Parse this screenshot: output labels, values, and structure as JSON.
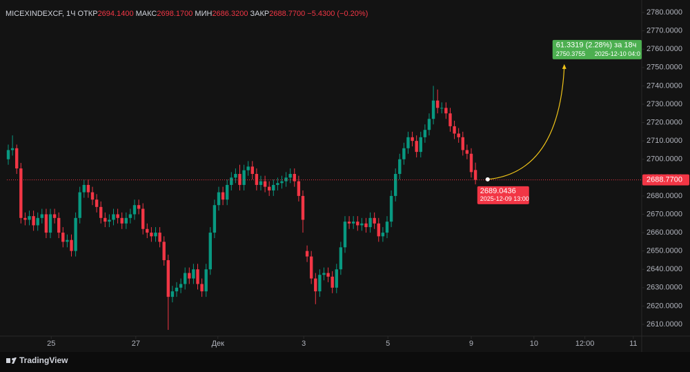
{
  "chart_data": {
    "type": "candlestick",
    "header": {
      "symbol": "MICEXINDEXCF, 1Ч",
      "open_label": "ОТКР",
      "open": "2694.1400",
      "high_label": "МАКС",
      "high": "2698.1700",
      "low_label": "МИН",
      "low": "2686.3200",
      "close_label": "ЗАКР",
      "close": "2688.7700",
      "change": "−5.4300 (−0.20%)"
    },
    "up_color": "#089981",
    "down_color": "#f23645",
    "open": [
      2700,
      2705,
      2706,
      2695,
      2668,
      2667,
      2669,
      2664,
      2668,
      2670,
      2660,
      2670,
      2668,
      2660,
      2655,
      2656,
      2650,
      2668,
      2682,
      2686,
      2682,
      2678,
      2674,
      2668,
      2666,
      2667,
      2670,
      2668,
      2665,
      2668,
      2670,
      2675,
      2673,
      2662,
      2660,
      2658,
      2660,
      2655,
      2645,
      2625,
      2628,
      2630,
      2632,
      2638,
      2635,
      2640,
      2632,
      2628,
      2640,
      2660,
      2675,
      2682,
      2678,
      2686,
      2690,
      2692,
      2686,
      2694,
      2696,
      2692,
      2686,
      2688,
      2685,
      2683,
      2686,
      2687,
      2688,
      2690,
      2692,
      2688,
      2680,
      2650,
      2647,
      2635,
      2628,
      2637,
      2638,
      2636,
      2630,
      2640,
      2652,
      2666,
      2665,
      2666,
      2664,
      2665,
      2663,
      2668,
      2665,
      2658,
      2660,
      2666,
      2680,
      2692,
      2700,
      2706,
      2712,
      2710,
      2704,
      2712,
      2716,
      2722,
      2732,
      2728,
      2728,
      2725,
      2718,
      2714,
      2712,
      2705,
      2703,
      2694.14
    ],
    "high": [
      2708,
      2713,
      2708,
      2698,
      2671,
      2672,
      2672,
      2671,
      2673,
      2673,
      2673,
      2673,
      2671,
      2663,
      2659,
      2659,
      2671,
      2685,
      2689,
      2689,
      2685,
      2681,
      2677,
      2671,
      2670,
      2673,
      2673,
      2671,
      2671,
      2673,
      2678,
      2678,
      2676,
      2665,
      2663,
      2663,
      2663,
      2658,
      2648,
      2631,
      2633,
      2635,
      2641,
      2641,
      2643,
      2643,
      2635,
      2643,
      2663,
      2678,
      2685,
      2685,
      2689,
      2693,
      2695,
      2697,
      2697,
      2699,
      2699,
      2695,
      2691,
      2691,
      2688,
      2689,
      2690,
      2691,
      2693,
      2695,
      2695,
      2691,
      2683,
      2653,
      2650,
      2638,
      2640,
      2641,
      2641,
      2639,
      2643,
      2655,
      2669,
      2669,
      2669,
      2669,
      2668,
      2668,
      2671,
      2671,
      2668,
      2663,
      2669,
      2683,
      2695,
      2703,
      2709,
      2715,
      2715,
      2713,
      2715,
      2719,
      2725,
      2740,
      2738,
      2731,
      2731,
      2728,
      2721,
      2717,
      2715,
      2708,
      2706,
      2698.17
    ],
    "low": [
      2697,
      2702,
      2692,
      2665,
      2664,
      2664,
      2661,
      2661,
      2665,
      2657,
      2657,
      2665,
      2657,
      2652,
      2652,
      2647,
      2647,
      2665,
      2679,
      2679,
      2675,
      2671,
      2665,
      2663,
      2663,
      2664,
      2665,
      2662,
      2662,
      2665,
      2667,
      2670,
      2659,
      2657,
      2655,
      2655,
      2652,
      2642,
      2607,
      2622,
      2625,
      2627,
      2629,
      2632,
      2632,
      2629,
      2625,
      2625,
      2637,
      2657,
      2672,
      2675,
      2675,
      2683,
      2687,
      2683,
      2683,
      2691,
      2689,
      2683,
      2683,
      2682,
      2680,
      2680,
      2683,
      2684,
      2685,
      2687,
      2685,
      2677,
      2660,
      2644,
      2632,
      2621,
      2625,
      2634,
      2633,
      2627,
      2627,
      2637,
      2649,
      2662,
      2662,
      2661,
      2661,
      2660,
      2660,
      2662,
      2655,
      2655,
      2657,
      2663,
      2677,
      2689,
      2697,
      2703,
      2707,
      2701,
      2701,
      2709,
      2713,
      2719,
      2725,
      2725,
      2722,
      2715,
      2711,
      2709,
      2702,
      2700,
      2690,
      2686.32
    ],
    "close": [
      2705,
      2706,
      2695,
      2668,
      2667,
      2669,
      2664,
      2668,
      2670,
      2660,
      2670,
      2668,
      2660,
      2655,
      2656,
      2650,
      2668,
      2682,
      2686,
      2682,
      2678,
      2674,
      2668,
      2666,
      2667,
      2670,
      2668,
      2665,
      2668,
      2670,
      2675,
      2673,
      2662,
      2660,
      2658,
      2660,
      2655,
      2645,
      2625,
      2628,
      2630,
      2632,
      2638,
      2635,
      2640,
      2632,
      2628,
      2640,
      2660,
      2675,
      2682,
      2678,
      2686,
      2690,
      2692,
      2686,
      2694,
      2696,
      2692,
      2686,
      2688,
      2685,
      2683,
      2686,
      2687,
      2688,
      2690,
      2692,
      2688,
      2680,
      2667,
      2647,
      2635,
      2628,
      2637,
      2638,
      2636,
      2630,
      2640,
      2652,
      2666,
      2665,
      2666,
      2664,
      2665,
      2663,
      2668,
      2665,
      2658,
      2660,
      2666,
      2680,
      2692,
      2700,
      2706,
      2712,
      2710,
      2704,
      2712,
      2716,
      2722,
      2732,
      2728,
      2728,
      2725,
      2718,
      2714,
      2712,
      2705,
      2703,
      2693,
      2688.77
    ],
    "xlim": [
      -0.33,
      150.5
    ],
    "xticks": [
      {
        "value": 10.2,
        "label": "25"
      },
      {
        "value": 30.3,
        "label": "27"
      },
      {
        "value": 49.8,
        "label": "Дек"
      },
      {
        "value": 70.2,
        "label": "3"
      },
      {
        "value": 90.2,
        "label": "5"
      },
      {
        "value": 110,
        "label": "9"
      },
      {
        "value": 124.9,
        "label": "10"
      },
      {
        "value": 137,
        "label": "12:00"
      },
      {
        "value": 148.5,
        "label": "11"
      }
    ],
    "ylim": [
      2603.6,
      2786.8
    ],
    "yticks": [
      {
        "value": 2610,
        "label": "2610.0000"
      },
      {
        "value": 2620,
        "label": "2620.0000"
      },
      {
        "value": 2630,
        "label": "2630.0000"
      },
      {
        "value": 2640,
        "label": "2640.0000"
      },
      {
        "value": 2650,
        "label": "2650.0000"
      },
      {
        "value": 2660,
        "label": "2660.0000"
      },
      {
        "value": 2670,
        "label": "2670.0000"
      },
      {
        "value": 2680,
        "label": "2680.0000"
      },
      {
        "value": 2690,
        "label": "2690.0000"
      },
      {
        "value": 2700,
        "label": "2700.0000"
      },
      {
        "value": 2710,
        "label": "2710.0000"
      },
      {
        "value": 2720,
        "label": "2720.0000"
      },
      {
        "value": 2730,
        "label": "2730.0000"
      },
      {
        "value": 2740,
        "label": "2740.0000"
      },
      {
        "value": 2750,
        "label": "2750.0000"
      },
      {
        "value": 2760,
        "label": "2760.0000"
      },
      {
        "value": 2770,
        "label": "2770.0000"
      },
      {
        "value": 2780,
        "label": "2780.0000"
      }
    ],
    "grid": false,
    "last_price": {
      "value": 2688.77,
      "label": "2688.7700"
    },
    "projection": {
      "start": {
        "value": 2689.0436,
        "label": "2689.0436"
      },
      "start_time": "2025-12-09 13:00",
      "change": "61.3319 (2.28%) за 18ч",
      "target": {
        "value": 2750.3755,
        "label": "2750.3755"
      },
      "target_time": "2025-12-10 04:0"
    }
  },
  "brand": "TradingView"
}
